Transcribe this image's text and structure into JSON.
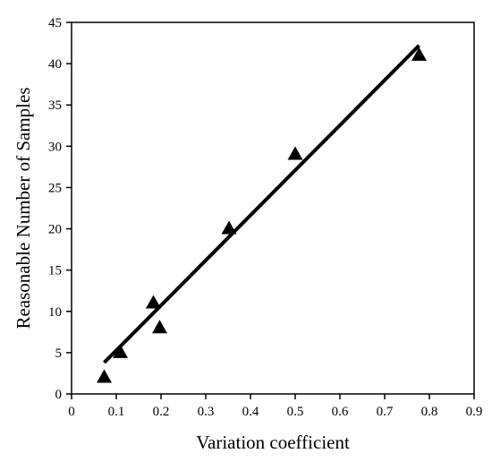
{
  "chart_data": {
    "type": "scatter",
    "title": "",
    "xlabel": "Variation coefficient",
    "ylabel": "Reasonable Number of Samples",
    "xlim": [
      0,
      0.9
    ],
    "ylim": [
      0,
      45
    ],
    "x_ticks": [
      "0",
      "0.1",
      "0.2",
      "0.3",
      "0.4",
      "0.5",
      "0.6",
      "0.7",
      "0.8",
      "0.9"
    ],
    "y_ticks": [
      "0",
      "5",
      "10",
      "15",
      "20",
      "25",
      "30",
      "35",
      "40",
      "45"
    ],
    "grid": false,
    "legend": "none",
    "marker": "filled-triangle",
    "color": "#000000",
    "series": [
      {
        "x": [
          0.073,
          0.109,
          0.183,
          0.197,
          0.352,
          0.5,
          0.777
        ],
        "y": [
          2,
          5,
          11,
          8,
          20,
          29,
          41
        ]
      }
    ],
    "fit_line": {
      "x": [
        0.073,
        0.777
      ],
      "y": [
        3.8,
        42.2
      ]
    }
  }
}
